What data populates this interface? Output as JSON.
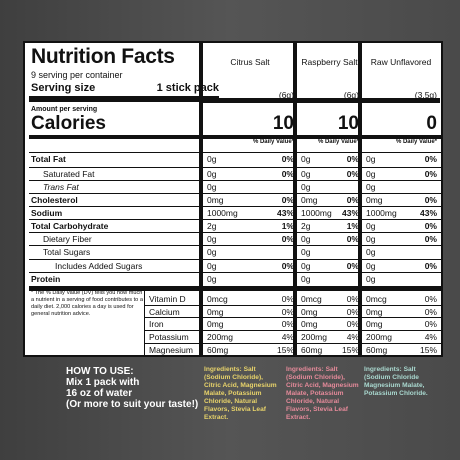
{
  "title": "Nutrition Facts",
  "servings_per_container": "9 serving per container",
  "serving_size_label": "Serving size",
  "serving_size_value": "1 stick pack",
  "amount_per_serving": "Amount per serving",
  "calories_label": "Calories",
  "dv_footnote": "* The % Daily Value (DV) tells you how much a nutrient in a serving of food contributes to a daily diet. 2,000 calories a day is used for general nutrition advice.",
  "columns": [
    {
      "name": "Citrus Salt",
      "serving": "(6g)",
      "calories": "10",
      "dv_header": "% Daily Value*"
    },
    {
      "name": "Raspberry Salt",
      "serving": "(6g)",
      "calories": "10",
      "dv_header": "% Daily Value*"
    },
    {
      "name": "Raw Unflavored",
      "serving": "(3.5g)",
      "calories": "0",
      "dv_header": "% Daily Value*"
    }
  ],
  "nutrients": [
    {
      "name": "Total Fat",
      "bold": true,
      "values": [
        [
          "0g",
          "0%"
        ],
        [
          "0g",
          "0%"
        ],
        [
          "0g",
          "0%"
        ]
      ]
    },
    {
      "name": "Saturated Fat",
      "bold": false,
      "values": [
        [
          "0g",
          "0%"
        ],
        [
          "0g",
          "0%"
        ],
        [
          "0g",
          "0%"
        ]
      ]
    },
    {
      "name": "Trans Fat",
      "bold": false,
      "values": [
        [
          "0g",
          ""
        ],
        [
          "0g",
          ""
        ],
        [
          "0g",
          ""
        ]
      ]
    },
    {
      "name": "Cholesterol",
      "bold": true,
      "values": [
        [
          "0mg",
          "0%"
        ],
        [
          "0mg",
          "0%"
        ],
        [
          "0mg",
          "0%"
        ]
      ]
    },
    {
      "name": "Sodium",
      "bold": true,
      "values": [
        [
          "1000mg",
          "43%"
        ],
        [
          "1000mg",
          "43%"
        ],
        [
          "1000mg",
          "43%"
        ]
      ]
    },
    {
      "name": "Total Carbohydrate",
      "bold": true,
      "values": [
        [
          "2g",
          "1%"
        ],
        [
          "2g",
          "1%"
        ],
        [
          "0g",
          "0%"
        ]
      ]
    },
    {
      "name": "Dietary Fiber",
      "bold": false,
      "values": [
        [
          "0g",
          "0%"
        ],
        [
          "0g",
          "0%"
        ],
        [
          "0g",
          "0%"
        ]
      ]
    },
    {
      "name": "Total Sugars",
      "bold": false,
      "values": [
        [
          "0g",
          ""
        ],
        [
          "0g",
          ""
        ],
        [
          "0g",
          ""
        ]
      ]
    },
    {
      "name": "Includes Added Sugars",
      "bold": false,
      "values": [
        [
          "0g",
          "0%"
        ],
        [
          "0g",
          "0%"
        ],
        [
          "0g",
          "0%"
        ]
      ]
    },
    {
      "name": "Protein",
      "bold": true,
      "values": [
        [
          "0g",
          ""
        ],
        [
          "0g",
          ""
        ],
        [
          "0g",
          ""
        ]
      ]
    }
  ],
  "vitamins": [
    {
      "name": "Vitamin D",
      "values": [
        [
          "0mcg",
          "0%"
        ],
        [
          "0mcg",
          "0%"
        ],
        [
          "0mcg",
          "0%"
        ]
      ]
    },
    {
      "name": "Calcium",
      "values": [
        [
          "0mg",
          "0%"
        ],
        [
          "0mg",
          "0%"
        ],
        [
          "0mg",
          "0%"
        ]
      ]
    },
    {
      "name": "Iron",
      "values": [
        [
          "0mg",
          "0%"
        ],
        [
          "0mg",
          "0%"
        ],
        [
          "0mg",
          "0%"
        ]
      ]
    },
    {
      "name": "Potassium",
      "values": [
        [
          "200mg",
          "4%"
        ],
        [
          "200mg",
          "4%"
        ],
        [
          "200mg",
          "4%"
        ]
      ]
    },
    {
      "name": "Magnesium",
      "values": [
        [
          "60mg",
          "15%"
        ],
        [
          "60mg",
          "15%"
        ],
        [
          "60mg",
          "15%"
        ]
      ]
    }
  ],
  "how_to_use": [
    "HOW TO USE:",
    "Mix 1 pack with",
    "16 oz of water",
    "(Or more to suit your taste!)"
  ],
  "ingredients": [
    {
      "text": "Ingredients: Salt (Sodium Chloride), Citric Acid, Magnesium Malate, Potassium Chloride, Natural Flavors, Stevia Leaf Extract.",
      "color": "#e8d36a"
    },
    {
      "text": "Ingredients: Salt (Sodium Chloride), Citric Acid, Magnesium Malate, Potassium Chloride, Natural Flavors, Stevia Leaf Extract.",
      "color": "#e58a9a"
    },
    {
      "text": "Ingredients: Salt (Sodium Chloride Magnesium Malate, Potassium Chloride.",
      "color": "#a9d8cf"
    }
  ],
  "colors": {
    "label_bg": "#ffffff",
    "ink": "#111111",
    "page_bg": "#4a4a4a"
  }
}
